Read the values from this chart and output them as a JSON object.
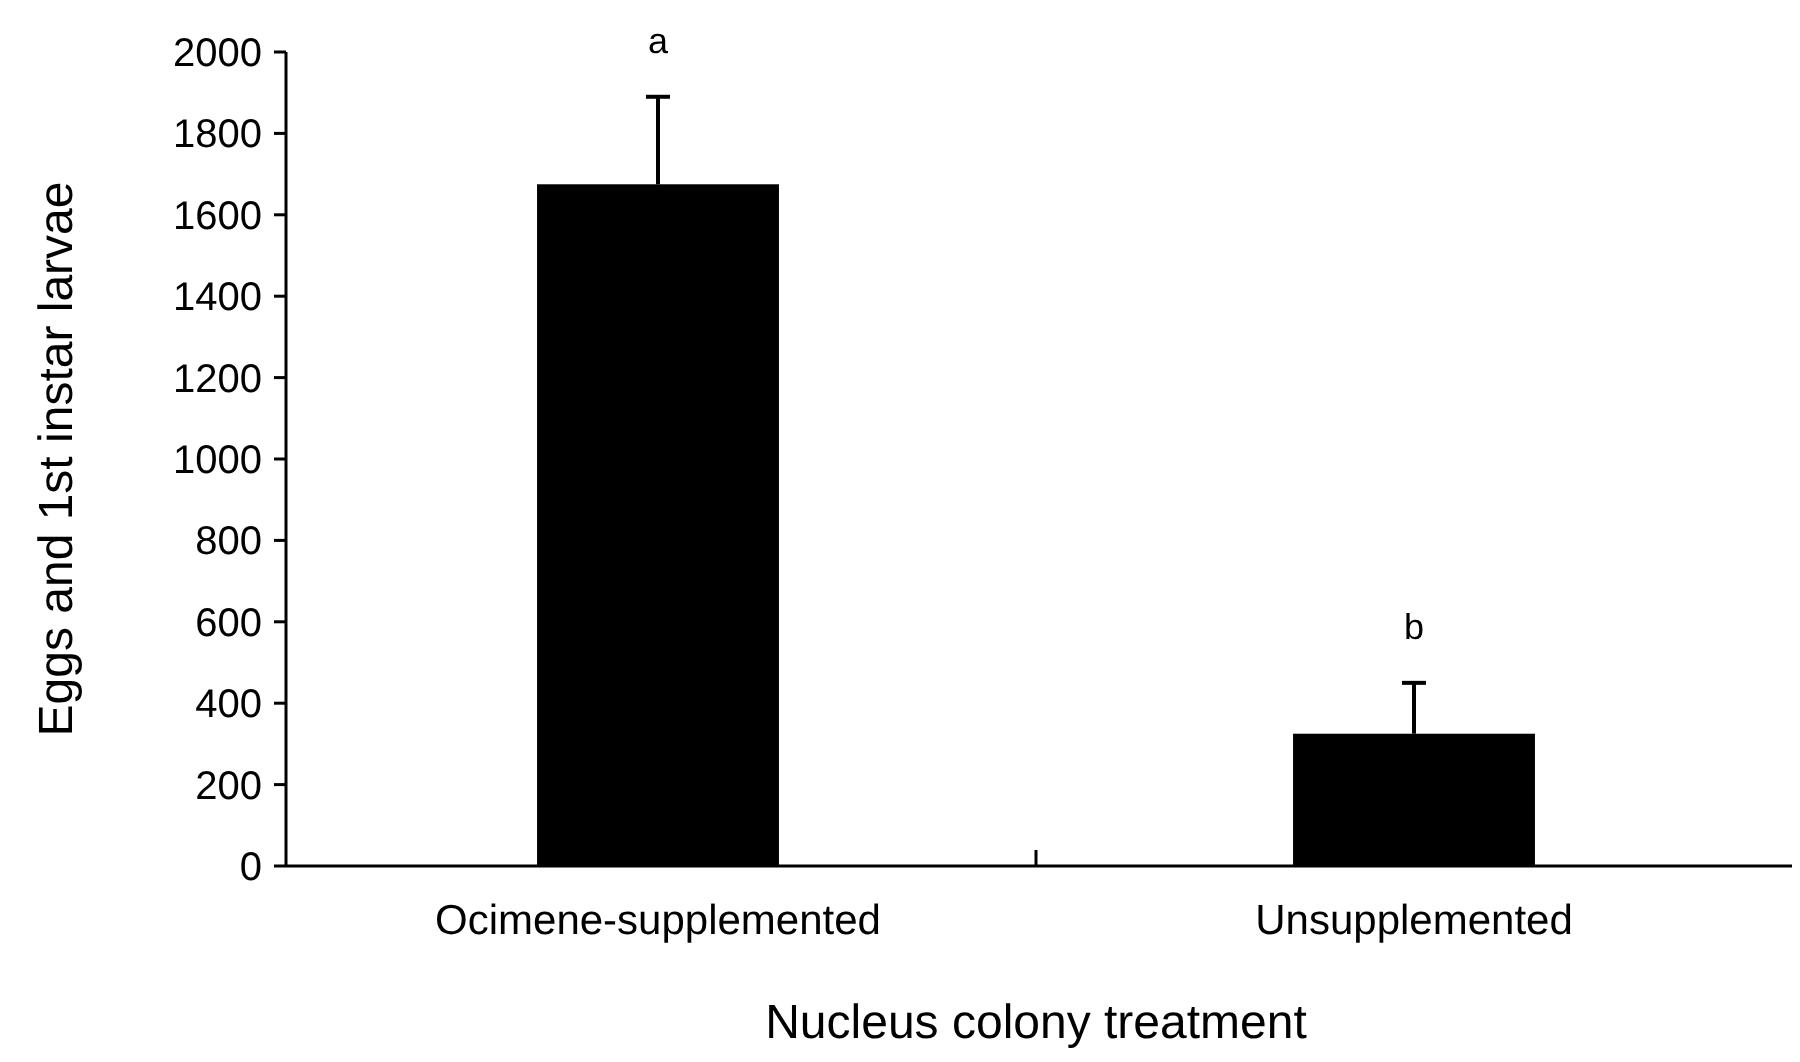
{
  "chart_data": {
    "type": "bar",
    "xlabel": "Nucleus colony treatment",
    "ylabel": "Eggs and 1st instar larvae",
    "categories": [
      "Ocimene-supplemented",
      "Unsupplemented"
    ],
    "values": [
      1675,
      325
    ],
    "color": "#000000",
    "errors": [
      [
        1675,
        1890
      ],
      [
        325,
        450
      ]
    ],
    "ylim": [
      0,
      2000
    ],
    "yticks": [
      0,
      200,
      400,
      600,
      800,
      1000,
      1200,
      1400,
      1600,
      1800,
      2000
    ],
    "grid": false,
    "annotations": [
      "a",
      "b"
    ]
  }
}
